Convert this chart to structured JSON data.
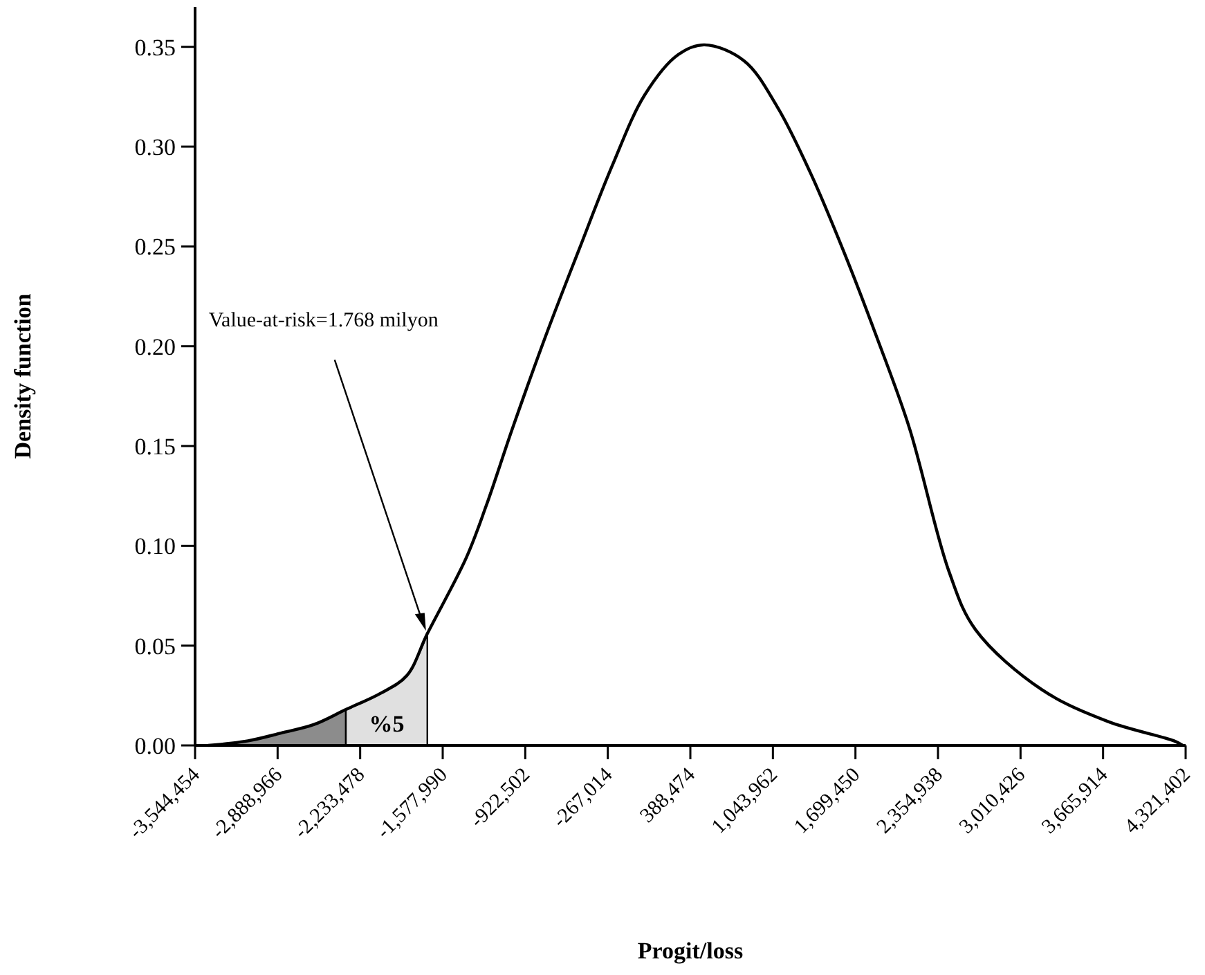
{
  "chart_data": {
    "type": "line",
    "xlabel": "Progit/loss",
    "ylabel": "Density function",
    "xlim": [
      -3544454,
      4321402
    ],
    "ylim": [
      0,
      0.37
    ],
    "xticks": [
      {
        "value": -3544454,
        "label": "-3,544,454"
      },
      {
        "value": -2888966,
        "label": "-2,888,966"
      },
      {
        "value": -2233478,
        "label": "-2,233,478"
      },
      {
        "value": -1577990,
        "label": "-1,577,990"
      },
      {
        "value": -922502,
        "label": "-922,502"
      },
      {
        "value": -267014,
        "label": "-267,014"
      },
      {
        "value": 388474,
        "label": "388,474"
      },
      {
        "value": 1043962,
        "label": "1,043,962"
      },
      {
        "value": 1699450,
        "label": "1,699,450"
      },
      {
        "value": 2354938,
        "label": "2,354,938"
      },
      {
        "value": 3010426,
        "label": "3,010,426"
      },
      {
        "value": 3665914,
        "label": "3,665,914"
      },
      {
        "value": 4321402,
        "label": "4,321,402"
      }
    ],
    "yticks": [
      {
        "value": 0,
        "label": "0.00"
      },
      {
        "value": 0.05,
        "label": "0.05"
      },
      {
        "value": 0.1,
        "label": "0.10"
      },
      {
        "value": 0.15,
        "label": "0.15"
      },
      {
        "value": 0.2,
        "label": "0.20"
      },
      {
        "value": 0.25,
        "label": "0.25"
      },
      {
        "value": 0.3,
        "label": "0.30"
      },
      {
        "value": 0.35,
        "label": "0.35"
      }
    ],
    "series": [
      {
        "type": "area",
        "color": "#8c8c8c",
        "x": [
          -3439000,
          -3124000,
          -2862000,
          -2599000,
          -2347000
        ],
        "values": [
          0,
          0.0023,
          0.0062,
          0.0105,
          0.018
        ]
      },
      {
        "type": "area",
        "color": "#e0e0e0",
        "x": [
          -2347000,
          -2074000,
          -1863000,
          -1700000
        ],
        "values": [
          0.018,
          0.026,
          0.035,
          0.056
        ]
      },
      {
        "color": "#000000",
        "x": [
          -3439000,
          -3124000,
          -2862000,
          -2599000,
          -2347000,
          -2074000,
          -1863000,
          -1700000,
          -1391000,
          -1233000,
          -1023000,
          -761000,
          -498000,
          -235000,
          27000,
          290000,
          500000,
          815000,
          1078000,
          1341000,
          1603000,
          1866000,
          2128000,
          2443000,
          2653000,
          3178000,
          3704000,
          4229000,
          4300000
        ],
        "values": [
          0,
          0.0023,
          0.0062,
          0.0105,
          0.018,
          0.026,
          0.035,
          0.056,
          0.094,
          0.12,
          0.159,
          0.205,
          0.248,
          0.29,
          0.326,
          0.346,
          0.351,
          0.343,
          0.32,
          0.287,
          0.248,
          0.205,
          0.159,
          0.087,
          0.058,
          0.028,
          0.012,
          0.0023,
          0
        ]
      }
    ],
    "annotations": [
      "Value-at-risk=1.768 milyon",
      "%5"
    ],
    "marker": "none",
    "line_style": "solid"
  }
}
